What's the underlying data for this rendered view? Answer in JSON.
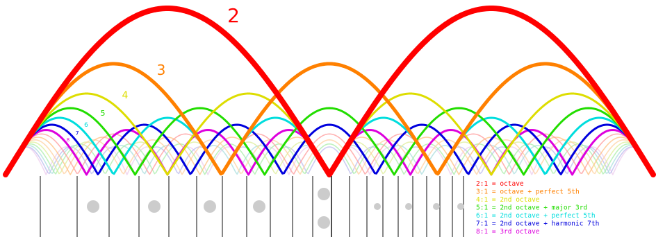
{
  "harmonics": [
    {
      "n": 2,
      "label": "2",
      "color": "#ff0000"
    },
    {
      "n": 3,
      "label": "3",
      "color": "#ff8000"
    },
    {
      "n": 4,
      "label": "4",
      "color": "#dddd00"
    },
    {
      "n": 5,
      "label": "5",
      "color": "#22dd00"
    },
    {
      "n": 6,
      "label": "6",
      "color": "#00dddd"
    },
    {
      "n": 7,
      "label": "7",
      "color": "#0000dd"
    },
    {
      "n": 8,
      "label": "8",
      "color": "#dd00dd"
    },
    {
      "n": 9,
      "label": "",
      "color": "#ff9999"
    },
    {
      "n": 10,
      "label": "",
      "color": "#ffc080"
    },
    {
      "n": 11,
      "label": "",
      "color": "#ffd0a0"
    },
    {
      "n": 12,
      "label": "",
      "color": "#ddee99"
    },
    {
      "n": 13,
      "label": "",
      "color": "#aaeeaa"
    },
    {
      "n": 14,
      "label": "",
      "color": "#aadddd"
    },
    {
      "n": 15,
      "label": "",
      "color": "#bbbbee"
    },
    {
      "n": 16,
      "label": "",
      "color": "#eeccee"
    }
  ],
  "legend": [
    {
      "text": "2:1 = octave",
      "color": "#ff0000"
    },
    {
      "text": "3:1 = octave + perfect 5th",
      "color": "#ff8000"
    },
    {
      "text": "4:1 = 2nd octave",
      "color": "#dddd00"
    },
    {
      "text": "5:1 = 2nd octave + major 3rd",
      "color": "#22dd00"
    },
    {
      "text": "6:1 = 2nd octave + perfect 5th",
      "color": "#00dddd"
    },
    {
      "text": "7:1 = 2nd octave + harmonic 7th",
      "color": "#0000dd"
    },
    {
      "text": "8:1 = 3rd octave",
      "color": "#dd00dd"
    }
  ],
  "colors": {
    "fret_line": "#222222",
    "fret_dot": "#cccccc",
    "background": "#ffffff"
  }
}
